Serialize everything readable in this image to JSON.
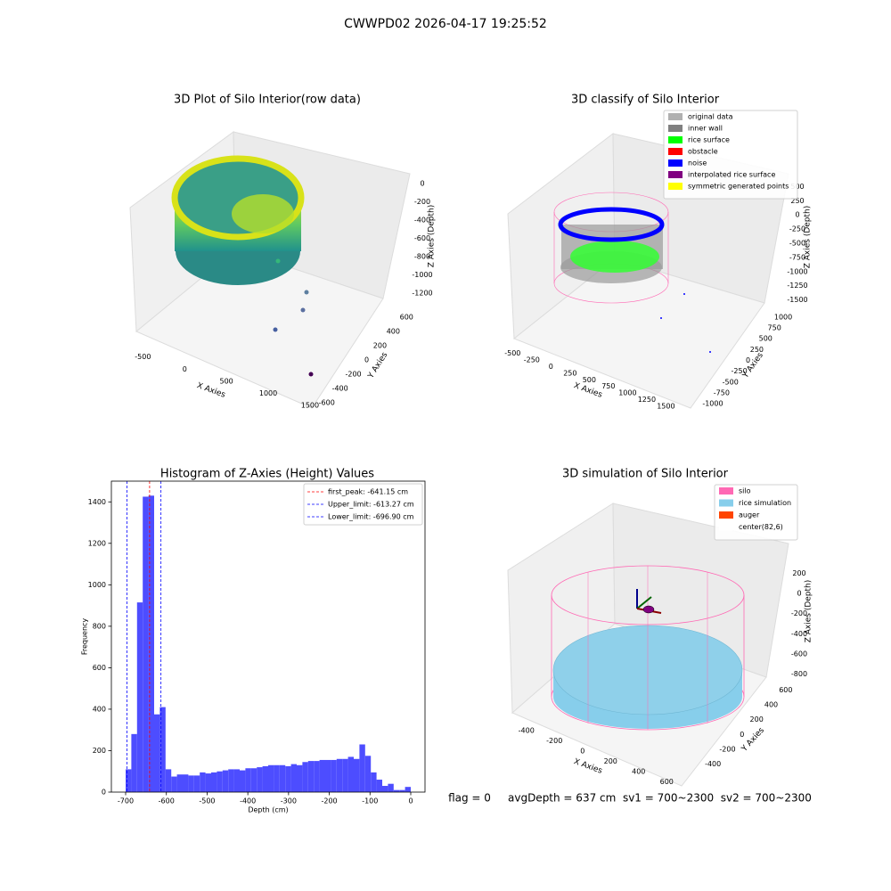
{
  "title": "CWWPD02 2026-04-17 19:25:52",
  "footer": "flag = 0     avgDepth = 637 cm  sv1 = 700~2300  sv2 = 700~2300",
  "chart_data": [
    {
      "type": "scatter3d",
      "title": "3D Plot of Silo Interior(row data)",
      "x_label": "X Axies",
      "y_label": "Y Axies",
      "z_label": "Z Axies (Depth)",
      "xlim": [
        -600,
        1650
      ],
      "xticks": [
        -500,
        0,
        500,
        1000,
        1500
      ],
      "ylim": [
        -650,
        650
      ],
      "yticks": [
        -600,
        -400,
        -200,
        0,
        200,
        400,
        600
      ],
      "zlim": [
        -1300,
        100
      ],
      "zticks": [
        -1200,
        -1000,
        -800,
        -600,
        -400,
        -200,
        0
      ]
    },
    {
      "type": "scatter3d",
      "title": "3D classify of Silo Interior",
      "x_label": "X Axies",
      "y_label": "Y Axies",
      "z_label": "Z Axies (Depth)",
      "xlim": [
        -550,
        1600
      ],
      "xticks": [
        -500,
        -250,
        0,
        250,
        500,
        750,
        1000,
        1250,
        1500
      ],
      "ylim": [
        -1100,
        1100
      ],
      "yticks": [
        -1000,
        -750,
        -500,
        -250,
        0,
        250,
        500,
        750,
        1000
      ],
      "zlim": [
        -1600,
        600
      ],
      "zticks": [
        -1500,
        -1250,
        -1000,
        -750,
        -500,
        -250,
        0,
        250,
        500
      ],
      "legend": [
        {
          "name": "original data",
          "color": "#b0b0b0"
        },
        {
          "name": "inner wall",
          "color": "#808080"
        },
        {
          "name": "rice surface",
          "color": "#00ff00"
        },
        {
          "name": "obstacle",
          "color": "#ff0000"
        },
        {
          "name": "noise",
          "color": "#0000ff"
        },
        {
          "name": "interpolated rice surface",
          "color": "#800080"
        },
        {
          "name": "symmetric generated points",
          "color": "#ffff00"
        }
      ]
    },
    {
      "type": "histogram",
      "title": "Histogram of Z-Axies (Height) Values",
      "x_label": "Depth (cm)",
      "y_label": "Frequency",
      "color": "#4d4dff",
      "bins": [
        -700,
        -686,
        -672,
        -658,
        -644,
        -630,
        -616,
        -602,
        -588,
        -574,
        -560,
        -546,
        -532,
        -518,
        -504,
        -490,
        -476,
        -462,
        -448,
        -434,
        -420,
        -406,
        -392,
        -378,
        -364,
        -350,
        -336,
        -322,
        -308,
        -294,
        -280,
        -266,
        -252,
        -238,
        -224,
        -210,
        -196,
        -182,
        -168,
        -154,
        -140,
        -126,
        -112,
        -98,
        -84,
        -70,
        -56,
        -42,
        -28,
        -14,
        0
      ],
      "values": [
        110,
        280,
        915,
        1425,
        1430,
        375,
        410,
        110,
        75,
        85,
        85,
        80,
        80,
        95,
        90,
        95,
        100,
        105,
        110,
        110,
        105,
        115,
        115,
        120,
        125,
        130,
        130,
        130,
        125,
        135,
        130,
        145,
        150,
        150,
        155,
        155,
        155,
        160,
        160,
        170,
        160,
        230,
        175,
        95,
        60,
        30,
        40,
        10,
        10,
        25
      ],
      "xlim": [
        -735,
        35
      ],
      "xticks": [
        -700,
        -600,
        -500,
        -400,
        -300,
        -200,
        -100,
        0
      ],
      "ylim": [
        0,
        1500
      ],
      "yticks": [
        0,
        200,
        400,
        600,
        800,
        1000,
        1200,
        1400
      ],
      "vlines": [
        {
          "name": "first_peak: -641.15 cm",
          "value": -641.15,
          "color": "#ff0000"
        },
        {
          "name": "Upper_limit: -613.27 cm",
          "value": -613.27,
          "color": "#0000ff"
        },
        {
          "name": "Lower_limit: -696.90 cm",
          "value": -696.9,
          "color": "#0000ff"
        }
      ],
      "legend_position": "upper right"
    },
    {
      "type": "scatter3d",
      "title": "3D simulation of Silo Interior",
      "x_label": "X Axies",
      "y_label": "Y Axies",
      "z_label": "Z Axies (Depth)",
      "xlim": [
        -500,
        700
      ],
      "xticks": [
        -400,
        -200,
        0,
        200,
        400,
        600
      ],
      "ylim": [
        -500,
        700
      ],
      "yticks": [
        -400,
        -200,
        0,
        200,
        400,
        600
      ],
      "zlim": [
        -900,
        300
      ],
      "zticks": [
        -800,
        -600,
        -400,
        -200,
        0,
        200
      ],
      "legend": [
        {
          "name": "silo",
          "color": "#ff69b4"
        },
        {
          "name": "rice simulation",
          "color": "#87ceeb"
        },
        {
          "name": "auger",
          "color": "#ff4500"
        },
        {
          "name": "center(82,6)",
          "color": "#ffffff"
        }
      ]
    }
  ]
}
